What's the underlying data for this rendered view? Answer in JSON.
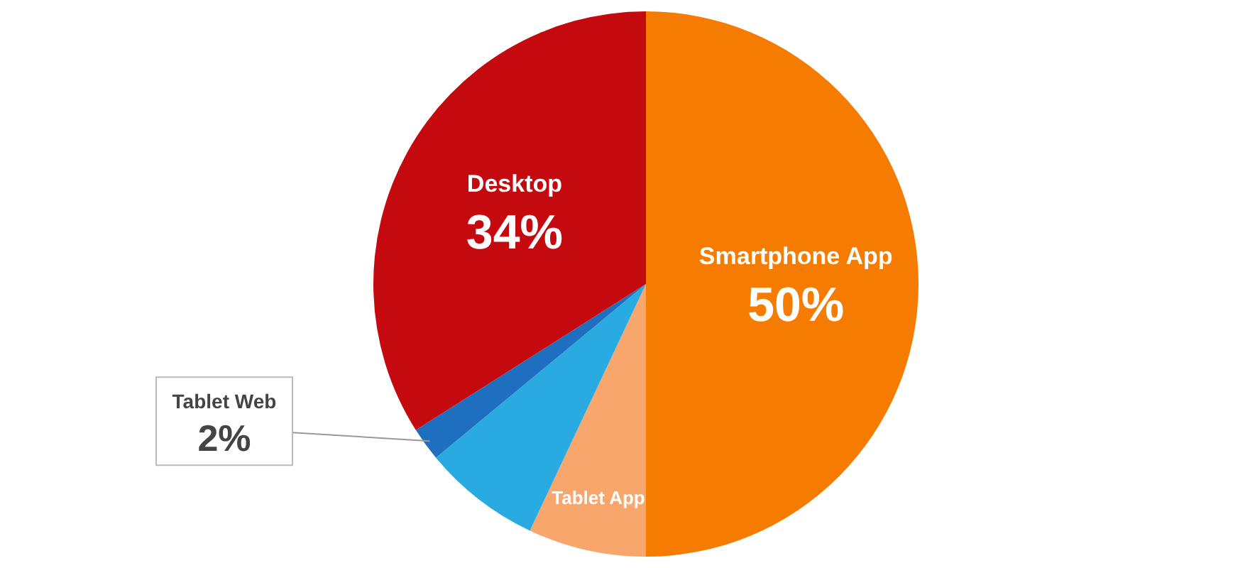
{
  "chart_data": {
    "type": "pie",
    "categories": [
      "Smartphone App",
      "Tablet App",
      null,
      "Tablet Web",
      "Desktop"
    ],
    "values": [
      50,
      7,
      7,
      2,
      34
    ],
    "colors": [
      "#f57c00",
      "#f8a66c",
      "#29abe2",
      "#1e6fc0",
      "#c40a0f"
    ],
    "value_labels": [
      "50%",
      null,
      null,
      "2%",
      "34%"
    ]
  }
}
